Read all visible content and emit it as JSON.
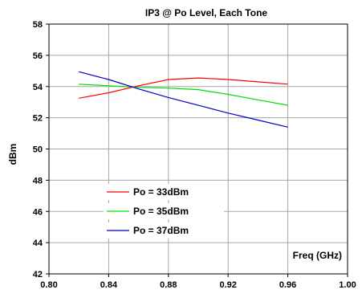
{
  "chart_data": {
    "type": "line",
    "title": "IP3 @ Po Level, Each Tone",
    "xlabel": "Freq (GHz)",
    "ylabel": "dBm",
    "xlim": [
      0.8,
      1.0
    ],
    "ylim": [
      42,
      58
    ],
    "xticks": [
      "0.80",
      "0.84",
      "0.88",
      "0.92",
      "0.96",
      "1.00"
    ],
    "yticks": [
      "42",
      "44",
      "46",
      "48",
      "50",
      "52",
      "54",
      "56",
      "58"
    ],
    "grid": true,
    "legend_position": "lower-left",
    "series": [
      {
        "name": "Po = 33dBm",
        "color": "#ff0000",
        "x": [
          0.82,
          0.84,
          0.86,
          0.88,
          0.9,
          0.92,
          0.94,
          0.96
        ],
        "y": [
          53.25,
          53.6,
          54.05,
          54.45,
          54.55,
          54.45,
          54.3,
          54.15
        ]
      },
      {
        "name": "Po = 35dBm",
        "color": "#00dd00",
        "x": [
          0.82,
          0.84,
          0.86,
          0.88,
          0.9,
          0.92,
          0.94,
          0.96
        ],
        "y": [
          54.15,
          54.05,
          53.95,
          53.9,
          53.8,
          53.5,
          53.15,
          52.8
        ]
      },
      {
        "name": "Po = 37dBm",
        "color": "#0000cc",
        "x": [
          0.82,
          0.84,
          0.86,
          0.88,
          0.9,
          0.92,
          0.94,
          0.96
        ],
        "y": [
          54.95,
          54.45,
          53.85,
          53.3,
          52.8,
          52.3,
          51.85,
          51.4
        ]
      }
    ]
  }
}
